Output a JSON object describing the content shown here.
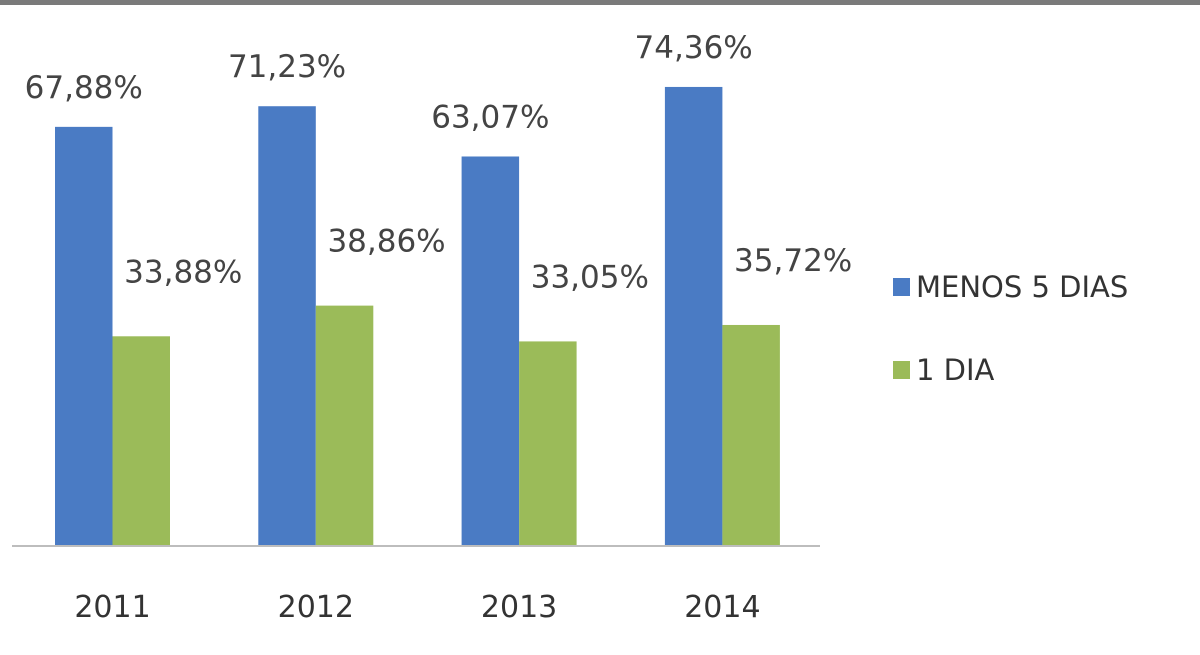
{
  "chart_data": {
    "type": "bar",
    "title": "",
    "xlabel": "",
    "ylabel": "",
    "categories": [
      "2011",
      "2012",
      "2013",
      "2014"
    ],
    "series": [
      {
        "name": "MENOS 5 DIAS",
        "color": "#4a7bc4",
        "values": [
          67.88,
          71.23,
          63.07,
          74.36
        ],
        "labels": [
          "67,88%",
          "71,23%",
          "63,07%",
          "74,36%"
        ]
      },
      {
        "name": "1 DIA",
        "color": "#9bbb59",
        "values": [
          33.88,
          38.86,
          33.05,
          35.72
        ],
        "labels": [
          "33,88%",
          "38,86%",
          "33,05%",
          "35,72%"
        ]
      }
    ],
    "ylim": [
      0,
      88
    ],
    "grid": false,
    "legend": "right"
  }
}
